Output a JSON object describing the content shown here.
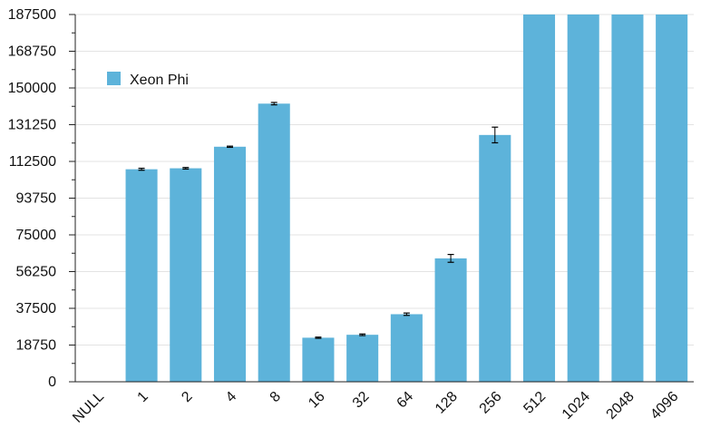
{
  "chart_data": {
    "type": "bar",
    "title": "",
    "xlabel": "",
    "ylabel": "",
    "categories": [
      "NULL",
      "1",
      "2",
      "4",
      "8",
      "16",
      "32",
      "64",
      "128",
      "256",
      "512",
      "1024",
      "2048",
      "4096"
    ],
    "series": [
      {
        "name": "Xeon Phi",
        "values": [
          0,
          108500,
          109000,
          120000,
          142000,
          22500,
          24000,
          34500,
          63000,
          126000,
          187500,
          187500,
          187500,
          187500
        ],
        "errors": [
          0,
          500,
          400,
          300,
          600,
          300,
          400,
          600,
          2000,
          4000,
          0,
          0,
          0,
          0
        ]
      }
    ],
    "ylim": [
      0,
      187500
    ],
    "yticks": [
      "0",
      "18750",
      "37500",
      "56250",
      "75000",
      "93750",
      "112500",
      "131250",
      "150000",
      "168750",
      "187500"
    ],
    "grid": true,
    "legend_position": "top-left",
    "color": "#5DB3DA"
  }
}
